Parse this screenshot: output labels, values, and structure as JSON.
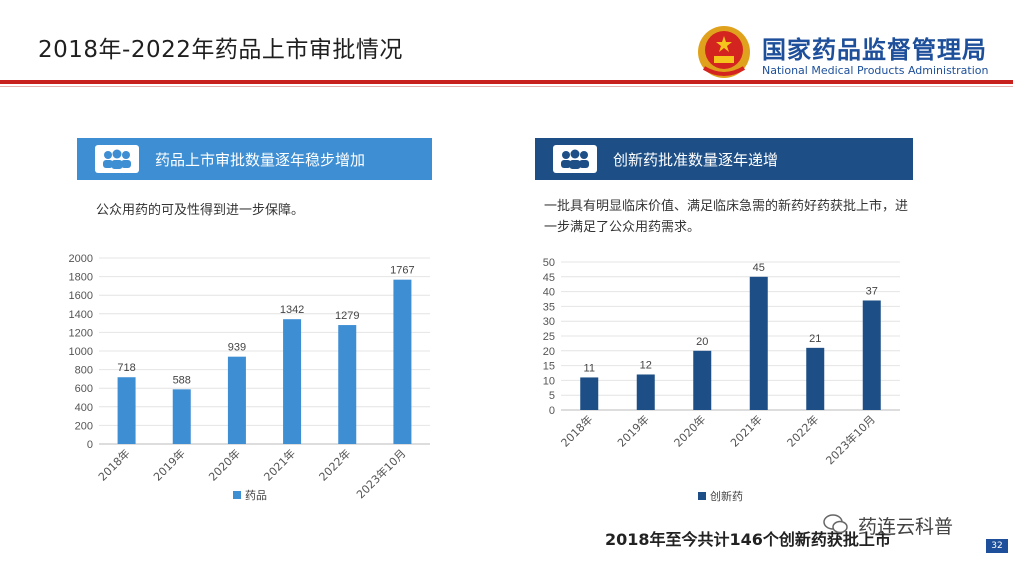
{
  "slide": {
    "title": "2018年-2022年药品上市审批情况",
    "org_cn": "国家药品监督管理局",
    "org_en": "National Medical Products Administration",
    "page_number": "32",
    "summary": "2018年至今共计146个创新药获批上市",
    "watermark": "药连云科普"
  },
  "left_panel": {
    "header": "药品上市审批数量逐年稳步增加",
    "description": "公众用药的可及性得到进一步保障。"
  },
  "right_panel": {
    "header": "创新药批准数量逐年递增",
    "description": "一批具有明显临床价值、满足临床急需的新药好药获批上市，进一步满足了公众用药需求。"
  },
  "colors": {
    "red_line": "#c8201c",
    "org_blue": "#1d4f9a",
    "left_bar": "#3e8ed3",
    "right_bar": "#1d4f86"
  },
  "icons": {
    "header_icon": "people-group-icon",
    "emblem": "national-emblem-icon",
    "watermark_icon": "wechat-icon"
  },
  "chart_data": [
    {
      "type": "bar",
      "categories": [
        "2018年",
        "2019年",
        "2020年",
        "2021年",
        "2022年",
        "2023年10月"
      ],
      "series": [
        {
          "name": "药品",
          "values": [
            718,
            588,
            939,
            1342,
            1279,
            1767
          ]
        }
      ],
      "ylim": [
        0,
        2000
      ],
      "yticks": [
        0,
        200,
        400,
        600,
        800,
        1000,
        1200,
        1400,
        1600,
        1800,
        2000
      ],
      "grid": true,
      "legend": "bottom"
    },
    {
      "type": "bar",
      "categories": [
        "2018年",
        "2019年",
        "2020年",
        "2021年",
        "2022年",
        "2023年10月"
      ],
      "series": [
        {
          "name": "创新药",
          "values": [
            11,
            12,
            20,
            45,
            21,
            37
          ]
        }
      ],
      "ylim": [
        0,
        50
      ],
      "yticks": [
        0,
        5,
        10,
        15,
        20,
        25,
        30,
        35,
        40,
        45,
        50
      ],
      "grid": true,
      "legend": "bottom"
    }
  ]
}
